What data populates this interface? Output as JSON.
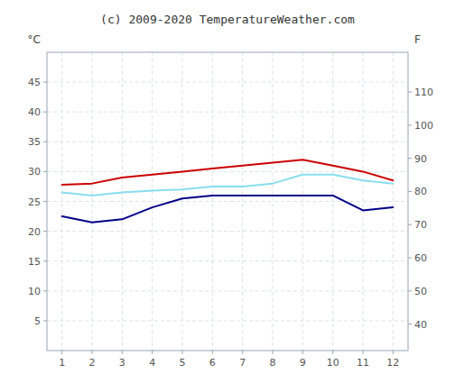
{
  "chart_data": {
    "type": "line",
    "title": "(c) 2009-2020 TemperatureWeather.com",
    "ylabel": "°C",
    "y2label": "F",
    "x": [
      1,
      2,
      3,
      4,
      5,
      6,
      7,
      8,
      9,
      10,
      11,
      12
    ],
    "xlim": [
      0.5,
      12.5
    ],
    "xticks": [
      1,
      2,
      3,
      4,
      5,
      6,
      7,
      8,
      9,
      10,
      11,
      12
    ],
    "ylim": [
      0,
      50
    ],
    "yticks": [
      5,
      10,
      15,
      20,
      25,
      30,
      35,
      40,
      45
    ],
    "y2lim": [
      32,
      122
    ],
    "y2ticks": [
      40,
      50,
      60,
      70,
      80,
      90,
      100,
      110
    ],
    "grid": true,
    "series": [
      {
        "color": "#cc0000",
        "values": [
          27.8,
          28.0,
          29.0,
          29.5,
          30.0,
          30.5,
          31.0,
          31.5,
          32.0,
          31.0,
          30.0,
          28.5
        ]
      },
      {
        "color": "#88ddee",
        "values": [
          26.5,
          26.0,
          26.5,
          26.8,
          27.0,
          27.5,
          27.5,
          28.0,
          29.5,
          29.5,
          28.5,
          28.0
        ]
      },
      {
        "color": "#000088",
        "values": [
          22.5,
          21.5,
          22.0,
          24.0,
          25.5,
          26.0,
          26.0,
          26.0,
          26.0,
          26.0,
          23.5,
          24.0
        ]
      }
    ]
  }
}
